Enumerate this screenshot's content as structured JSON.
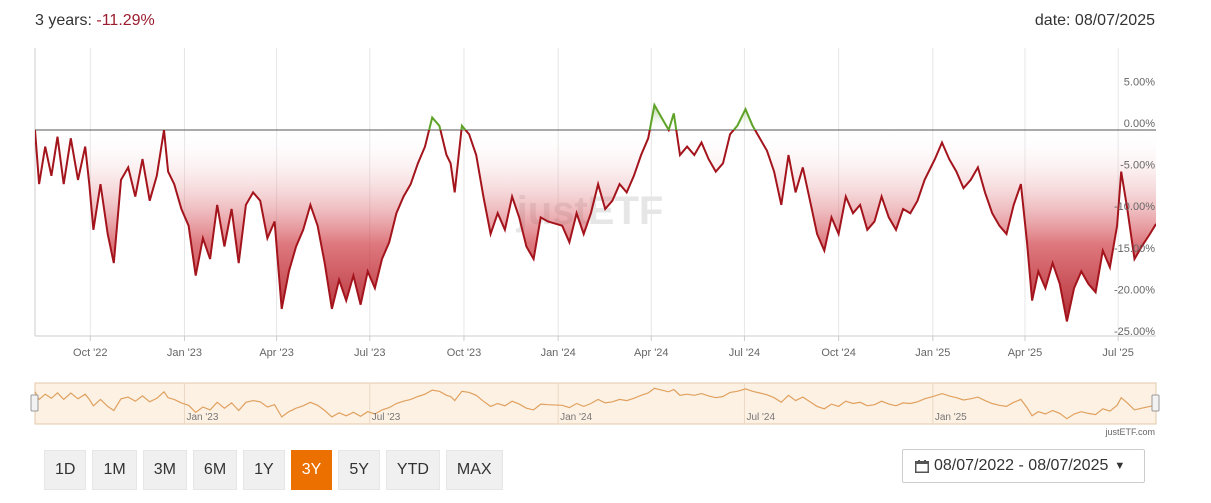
{
  "header": {
    "period_label": "3 years:",
    "period_value": "-11.29%",
    "date_label": "date: 08/07/2025"
  },
  "colors": {
    "positive": "#5ea327",
    "negative": "#a3141c",
    "accent": "#ec7000",
    "navigator": "#e0a15f"
  },
  "watermark": "justETF",
  "navigator_credit": "justETF.com",
  "chart_data": {
    "type": "area",
    "x_tick_labels": [
      "Oct '22",
      "Jan '23",
      "Apr '23",
      "Jul '23",
      "Oct '23",
      "Jan '24",
      "Apr '24",
      "Jul '24",
      "Oct '24",
      "Jan '25",
      "Apr '25",
      "Jul '25"
    ],
    "y_tick_labels": [
      "5.00%",
      "0.00%",
      "-5.00%",
      "-10.00%",
      "-15.00%",
      "-20.00%",
      "-25.00%"
    ],
    "ylim": [
      -25,
      5
    ],
    "xlim": [
      "2022-08-08",
      "2025-08-07"
    ],
    "grid": "vertical",
    "series": [
      {
        "values": [
          [
            "2022-08-08",
            0.0
          ],
          [
            "2022-08-12",
            -6.5
          ],
          [
            "2022-08-18",
            -2.0
          ],
          [
            "2022-08-24",
            -5.5
          ],
          [
            "2022-08-30",
            -0.8
          ],
          [
            "2022-09-05",
            -6.5
          ],
          [
            "2022-09-12",
            -1.0
          ],
          [
            "2022-09-19",
            -6.0
          ],
          [
            "2022-09-26",
            -2.0
          ],
          [
            "2022-09-30",
            -6.5
          ],
          [
            "2022-10-04",
            -12.0
          ],
          [
            "2022-10-11",
            -6.5
          ],
          [
            "2022-10-18",
            -12.5
          ],
          [
            "2022-10-24",
            -16.0
          ],
          [
            "2022-10-31",
            -6.0
          ],
          [
            "2022-11-07",
            -4.5
          ],
          [
            "2022-11-14",
            -8.0
          ],
          [
            "2022-11-21",
            -3.5
          ],
          [
            "2022-11-28",
            -8.5
          ],
          [
            "2022-12-05",
            -5.5
          ],
          [
            "2022-12-12",
            0.0
          ],
          [
            "2022-12-16",
            -5.0
          ],
          [
            "2022-12-22",
            -6.5
          ],
          [
            "2022-12-29",
            -9.5
          ],
          [
            "2023-01-05",
            -11.5
          ],
          [
            "2023-01-12",
            -17.5
          ],
          [
            "2023-01-19",
            -13.0
          ],
          [
            "2023-01-26",
            -15.5
          ],
          [
            "2023-02-02",
            -9.0
          ],
          [
            "2023-02-09",
            -14.0
          ],
          [
            "2023-02-16",
            -9.5
          ],
          [
            "2023-02-23",
            -16.0
          ],
          [
            "2023-03-02",
            -9.0
          ],
          [
            "2023-03-09",
            -7.5
          ],
          [
            "2023-03-16",
            -8.5
          ],
          [
            "2023-03-23",
            -13.0
          ],
          [
            "2023-03-30",
            -11.0
          ],
          [
            "2023-04-06",
            -21.5
          ],
          [
            "2023-04-13",
            -17.0
          ],
          [
            "2023-04-20",
            -14.0
          ],
          [
            "2023-04-27",
            -12.0
          ],
          [
            "2023-05-04",
            -9.0
          ],
          [
            "2023-05-11",
            -11.5
          ],
          [
            "2023-05-18",
            -16.0
          ],
          [
            "2023-05-25",
            -21.5
          ],
          [
            "2023-06-01",
            -18.0
          ],
          [
            "2023-06-08",
            -20.5
          ],
          [
            "2023-06-15",
            -17.5
          ],
          [
            "2023-06-22",
            -21.0
          ],
          [
            "2023-06-29",
            -17.0
          ],
          [
            "2023-07-06",
            -19.0
          ],
          [
            "2023-07-13",
            -15.5
          ],
          [
            "2023-07-20",
            -13.5
          ],
          [
            "2023-07-27",
            -10.0
          ],
          [
            "2023-08-03",
            -8.0
          ],
          [
            "2023-08-10",
            -6.5
          ],
          [
            "2023-08-17",
            -4.0
          ],
          [
            "2023-08-24",
            -2.0
          ],
          [
            "2023-08-31",
            1.5
          ],
          [
            "2023-09-07",
            0.5
          ],
          [
            "2023-09-14",
            -3.0
          ],
          [
            "2023-09-18",
            -4.0
          ],
          [
            "2023-09-22",
            -7.5
          ],
          [
            "2023-09-29",
            0.5
          ],
          [
            "2023-10-06",
            -0.5
          ],
          [
            "2023-10-13",
            -3.0
          ],
          [
            "2023-10-20",
            -8.0
          ],
          [
            "2023-10-27",
            -12.5
          ],
          [
            "2023-11-03",
            -10.0
          ],
          [
            "2023-11-10",
            -12.0
          ],
          [
            "2023-11-17",
            -8.0
          ],
          [
            "2023-11-24",
            -10.5
          ],
          [
            "2023-12-01",
            -14.0
          ],
          [
            "2023-12-08",
            -15.5
          ],
          [
            "2023-12-15",
            -10.5
          ],
          [
            "2023-12-22",
            -11.0
          ],
          [
            "2024-01-05",
            -11.5
          ],
          [
            "2024-01-12",
            -13.5
          ],
          [
            "2024-01-19",
            -10.0
          ],
          [
            "2024-01-26",
            -12.5
          ],
          [
            "2024-02-02",
            -10.0
          ],
          [
            "2024-02-09",
            -6.5
          ],
          [
            "2024-02-16",
            -9.5
          ],
          [
            "2024-02-23",
            -8.5
          ],
          [
            "2024-03-01",
            -6.5
          ],
          [
            "2024-03-08",
            -7.5
          ],
          [
            "2024-03-15",
            -5.5
          ],
          [
            "2024-03-22",
            -3.0
          ],
          [
            "2024-03-29",
            -1.0
          ],
          [
            "2024-04-04",
            3.0
          ],
          [
            "2024-04-11",
            1.5
          ],
          [
            "2024-04-18",
            0.0
          ],
          [
            "2024-04-23",
            2.0
          ],
          [
            "2024-04-29",
            -3.0
          ],
          [
            "2024-05-06",
            -2.0
          ],
          [
            "2024-05-13",
            -3.0
          ],
          [
            "2024-05-20",
            -1.5
          ],
          [
            "2024-05-27",
            -3.5
          ],
          [
            "2024-06-03",
            -5.0
          ],
          [
            "2024-06-10",
            -4.0
          ],
          [
            "2024-06-17",
            -0.5
          ],
          [
            "2024-06-24",
            0.5
          ],
          [
            "2024-07-02",
            2.5
          ],
          [
            "2024-07-09",
            0.5
          ],
          [
            "2024-07-16",
            -1.0
          ],
          [
            "2024-07-23",
            -2.5
          ],
          [
            "2024-07-30",
            -5.0
          ],
          [
            "2024-08-06",
            -9.0
          ],
          [
            "2024-08-13",
            -3.0
          ],
          [
            "2024-08-20",
            -7.5
          ],
          [
            "2024-08-27",
            -4.5
          ],
          [
            "2024-09-03",
            -8.5
          ],
          [
            "2024-09-10",
            -12.5
          ],
          [
            "2024-09-17",
            -14.5
          ],
          [
            "2024-09-24",
            -10.5
          ],
          [
            "2024-10-01",
            -12.5
          ],
          [
            "2024-10-08",
            -8.0
          ],
          [
            "2024-10-15",
            -10.0
          ],
          [
            "2024-10-22",
            -9.0
          ],
          [
            "2024-10-29",
            -12.0
          ],
          [
            "2024-11-05",
            -11.0
          ],
          [
            "2024-11-12",
            -8.0
          ],
          [
            "2024-11-19",
            -10.5
          ],
          [
            "2024-11-26",
            -12.0
          ],
          [
            "2024-12-03",
            -9.5
          ],
          [
            "2024-12-10",
            -10.0
          ],
          [
            "2024-12-17",
            -8.5
          ],
          [
            "2024-12-24",
            -6.0
          ],
          [
            "2025-01-03",
            -3.5
          ],
          [
            "2025-01-10",
            -1.5
          ],
          [
            "2025-01-17",
            -3.5
          ],
          [
            "2025-01-24",
            -5.0
          ],
          [
            "2025-01-31",
            -7.0
          ],
          [
            "2025-02-07",
            -6.0
          ],
          [
            "2025-02-14",
            -4.5
          ],
          [
            "2025-02-21",
            -7.5
          ],
          [
            "2025-02-28",
            -10.0
          ],
          [
            "2025-03-07",
            -11.5
          ],
          [
            "2025-03-14",
            -12.5
          ],
          [
            "2025-03-21",
            -9.0
          ],
          [
            "2025-03-28",
            -6.5
          ],
          [
            "2025-04-03",
            -13.5
          ],
          [
            "2025-04-08",
            -20.5
          ],
          [
            "2025-04-14",
            -17.0
          ],
          [
            "2025-04-21",
            -19.0
          ],
          [
            "2025-04-28",
            -16.0
          ],
          [
            "2025-05-05",
            -18.5
          ],
          [
            "2025-05-12",
            -23.0
          ],
          [
            "2025-05-19",
            -19.0
          ],
          [
            "2025-05-26",
            -17.0
          ],
          [
            "2025-06-02",
            -18.5
          ],
          [
            "2025-06-09",
            -19.5
          ],
          [
            "2025-06-16",
            -14.5
          ],
          [
            "2025-06-23",
            -16.5
          ],
          [
            "2025-06-30",
            -11.5
          ],
          [
            "2025-07-04",
            -5.0
          ],
          [
            "2025-07-10",
            -9.5
          ],
          [
            "2025-07-17",
            -15.5
          ],
          [
            "2025-07-24",
            -14.0
          ],
          [
            "2025-08-01",
            -12.5
          ],
          [
            "2025-08-07",
            -11.29
          ]
        ]
      }
    ]
  },
  "navigator": {
    "tick_labels": [
      "Jan '23",
      "Jul '23",
      "Jan '24",
      "Jul '24",
      "Jan '25"
    ]
  },
  "range_buttons": [
    {
      "label": "1D",
      "active": false
    },
    {
      "label": "1M",
      "active": false
    },
    {
      "label": "3M",
      "active": false
    },
    {
      "label": "6M",
      "active": false
    },
    {
      "label": "1Y",
      "active": false
    },
    {
      "label": "3Y",
      "active": true
    },
    {
      "label": "5Y",
      "active": false
    },
    {
      "label": "YTD",
      "active": false
    },
    {
      "label": "MAX",
      "active": false
    }
  ],
  "date_range": {
    "label": "08/07/2022 - 08/07/2025"
  }
}
